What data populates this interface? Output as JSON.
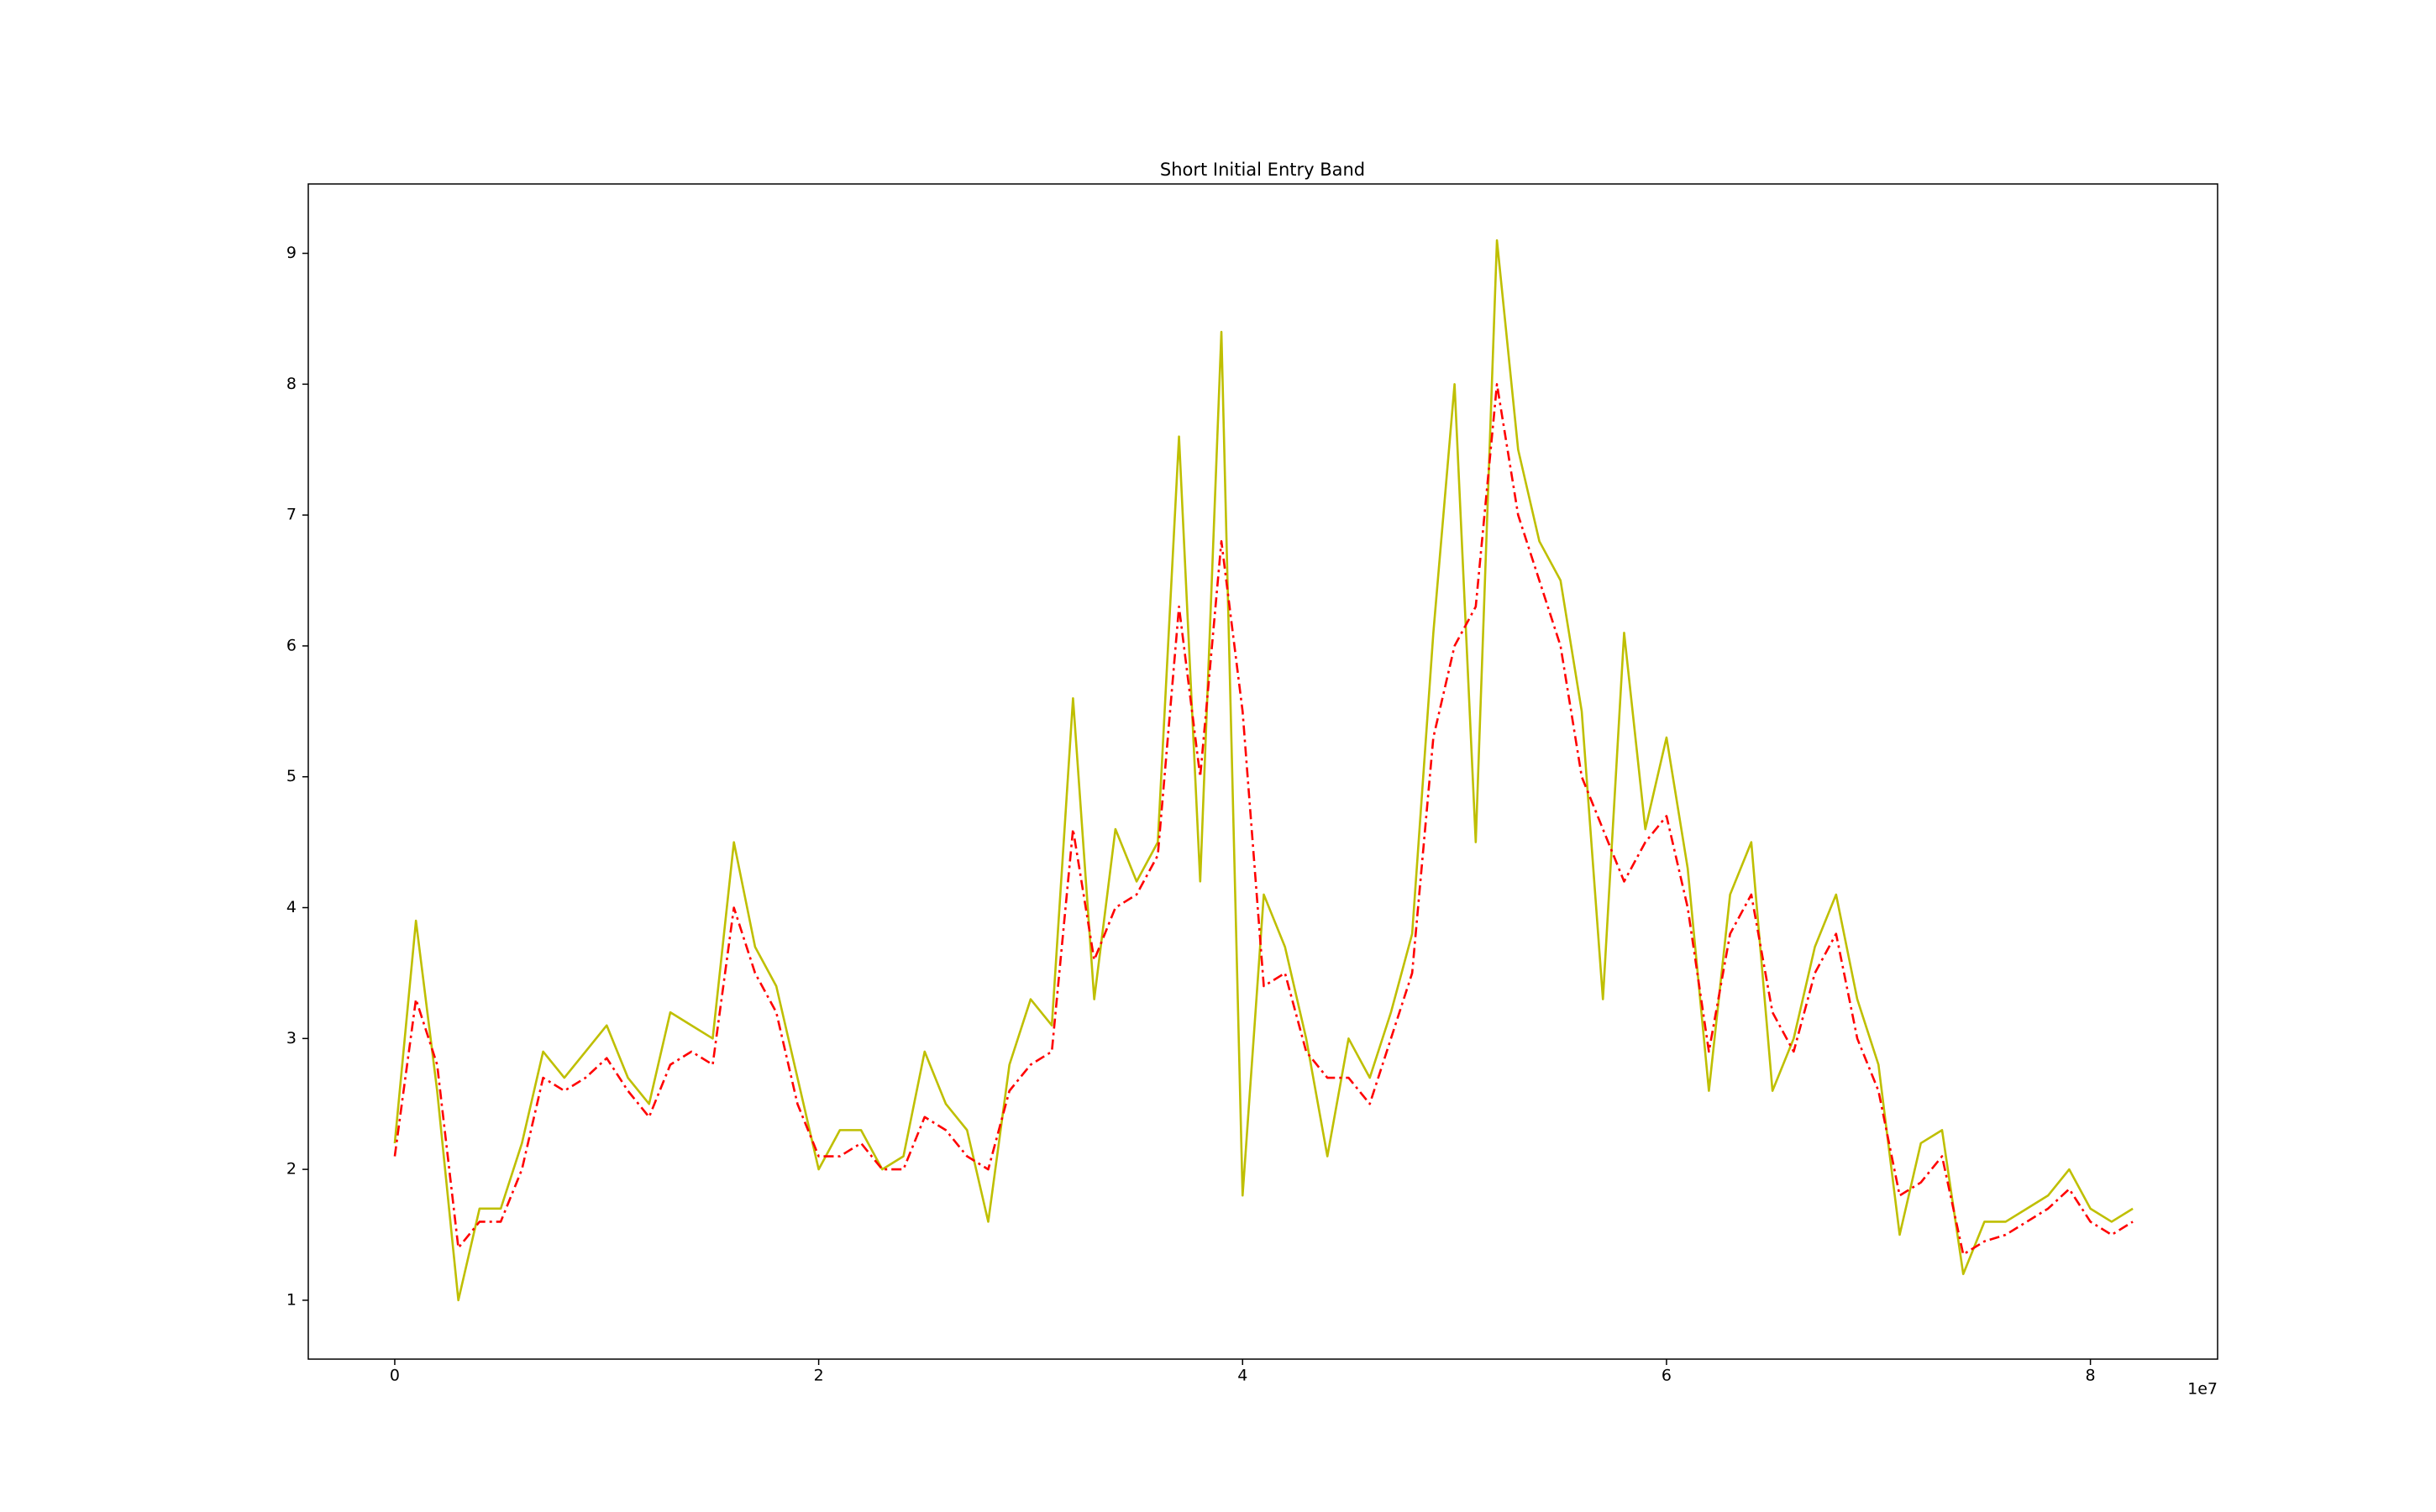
{
  "chart_data": {
    "type": "line",
    "title": "Short Initial Entry Band",
    "x": [
      0,
      1000000,
      2000000,
      3000000,
      4000000,
      5000000,
      6000000,
      7000000,
      8000000,
      9000000,
      10000000,
      11000000,
      12000000,
      13000000,
      14000000,
      15000000,
      16000000,
      17000000,
      18000000,
      19000000,
      20000000,
      21000000,
      22000000,
      23000000,
      24000000,
      25000000,
      26000000,
      27000000,
      28000000,
      29000000,
      30000000,
      31000000,
      32000000,
      33000000,
      34000000,
      35000000,
      36000000,
      37000000,
      38000000,
      39000000,
      40000000,
      41000000,
      42000000,
      43000000,
      44000000,
      45000000,
      46000000,
      47000000,
      48000000,
      49000000,
      50000000,
      51000000,
      52000000,
      53000000,
      54000000,
      55000000,
      56000000,
      57000000,
      58000000,
      59000000,
      60000000,
      61000000,
      62000000,
      63000000,
      64000000,
      65000000,
      66000000,
      67000000,
      68000000,
      69000000,
      70000000,
      71000000,
      72000000,
      73000000,
      74000000,
      75000000,
      76000000,
      77000000,
      78000000,
      79000000,
      80000000,
      81000000,
      82000000
    ],
    "series": [
      {
        "color": "#bfbf00",
        "linestyle": "solid",
        "values": [
          2.2,
          3.9,
          2.6,
          1.0,
          1.7,
          1.7,
          2.2,
          2.9,
          2.7,
          2.9,
          3.1,
          2.7,
          2.5,
          3.2,
          3.1,
          3.0,
          4.5,
          3.7,
          3.4,
          2.7,
          2.0,
          2.3,
          2.3,
          2.0,
          2.1,
          2.9,
          2.5,
          2.3,
          1.6,
          2.8,
          3.3,
          3.1,
          5.6,
          3.3,
          4.6,
          4.2,
          4.5,
          7.6,
          4.2,
          8.4,
          1.8,
          4.1,
          3.7,
          3.0,
          2.1,
          3.0,
          2.7,
          3.2,
          3.8,
          6.1,
          8.0,
          4.5,
          9.1,
          7.5,
          6.8,
          6.5,
          5.5,
          3.3,
          6.1,
          4.6,
          5.3,
          4.3,
          2.6,
          4.1,
          4.5,
          2.6,
          3.0,
          3.7,
          4.1,
          3.3,
          2.8,
          1.5,
          2.2,
          2.3,
          1.2,
          1.6,
          1.6,
          1.7,
          1.8,
          2.0,
          1.7,
          1.6,
          1.7
        ]
      },
      {
        "color": "#ff0000",
        "linestyle": "dashdot",
        "values": [
          2.1,
          3.3,
          2.8,
          1.4,
          1.6,
          1.6,
          2.0,
          2.7,
          2.6,
          2.7,
          2.85,
          2.6,
          2.4,
          2.8,
          2.9,
          2.8,
          4.0,
          3.5,
          3.2,
          2.5,
          2.1,
          2.1,
          2.2,
          2.0,
          2.0,
          2.4,
          2.3,
          2.1,
          2.0,
          2.6,
          2.8,
          2.9,
          4.6,
          3.6,
          4.0,
          4.1,
          4.4,
          6.3,
          5.0,
          6.8,
          5.5,
          3.4,
          3.5,
          2.9,
          2.7,
          2.7,
          2.5,
          3.0,
          3.5,
          5.3,
          6.0,
          6.3,
          8.0,
          7.0,
          6.5,
          6.0,
          5.0,
          4.6,
          4.2,
          4.5,
          4.7,
          4.0,
          2.9,
          3.8,
          4.1,
          3.2,
          2.9,
          3.5,
          3.8,
          3.0,
          2.6,
          1.8,
          1.9,
          2.1,
          1.35,
          1.45,
          1.5,
          1.6,
          1.7,
          1.85,
          1.6,
          1.5,
          1.6
        ]
      }
    ],
    "xlim": [
      -4080000,
      86000000
    ],
    "xticks": [
      {
        "value": 0,
        "label": "0"
      },
      {
        "value": 20000000,
        "label": "2"
      },
      {
        "value": 40000000,
        "label": "4"
      },
      {
        "value": 60000000,
        "label": "6"
      },
      {
        "value": 80000000,
        "label": "8"
      }
    ],
    "x_offset_label": "1e7",
    "ylim": [
      0.55,
      9.53
    ],
    "yticks": [
      1,
      2,
      3,
      4,
      5,
      6,
      7,
      8,
      9
    ],
    "grid": false
  }
}
